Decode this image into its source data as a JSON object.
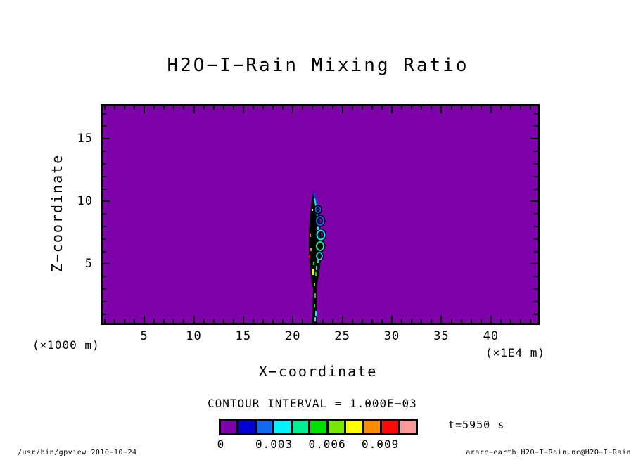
{
  "header": {
    "title": "H2O−I−Rain Mixing Ratio"
  },
  "footer": {
    "left": "/usr/bin/gpview  2010−10−24",
    "right": "arare−earth_H2O−I−Rain.nc@H2O−I−Rain"
  },
  "chart_data": {
    "type": "contour_filled",
    "title": "H2O−I−Rain Mixing Ratio",
    "xlabel": "X−coordinate",
    "x_unit_label": "(×1E4 m)",
    "y_unit_label": "(×1000 m)",
    "ylabel": "Z−coordinate",
    "xlim": [
      0.8,
      44.7
    ],
    "ylim": [
      0.3,
      17.6
    ],
    "x_major_ticks": [
      5,
      10,
      15,
      20,
      25,
      30,
      35,
      40
    ],
    "x_minor_step": 1,
    "y_major_ticks": [
      5,
      10,
      15
    ],
    "y_minor_step": 1,
    "grid": false,
    "contour_interval_value": "1.000E−03",
    "contour_interval_label": "CONTOUR INTERVAL = 1.000E−03",
    "time_label": "t=5950 s",
    "plot_background_color": "#7D00A8",
    "frame_color": "#000000",
    "colorbar": {
      "colors": [
        "#7D00A8",
        "#0000D0",
        "#1169F0",
        "#00F2FF",
        "#00EE94",
        "#00E000",
        "#77E800",
        "#FFFF00",
        "#FF8C00",
        "#FA0A0A",
        "#FA9A9A"
      ],
      "level_min": 0,
      "level_step": 0.001,
      "labels": [
        {
          "text": "0",
          "boundary_index": 0
        },
        {
          "text": "0.003",
          "boundary_index": 3
        },
        {
          "text": "0.006",
          "boundary_index": 6
        },
        {
          "text": "0.009",
          "boundary_index": 9
        }
      ]
    },
    "field_summary": {
      "background_value": 0,
      "features": [
        {
          "name": "rain-shaft",
          "description": "Narrow vertical plume of dense contour lines (appears black) with embedded colored filled patches and small closed-contour rings on its right flank",
          "x_center_x1E4m": 22,
          "z_extent_x1000m": [
            0,
            10.5
          ],
          "approx_peak_value": 0.009
        }
      ]
    }
  }
}
